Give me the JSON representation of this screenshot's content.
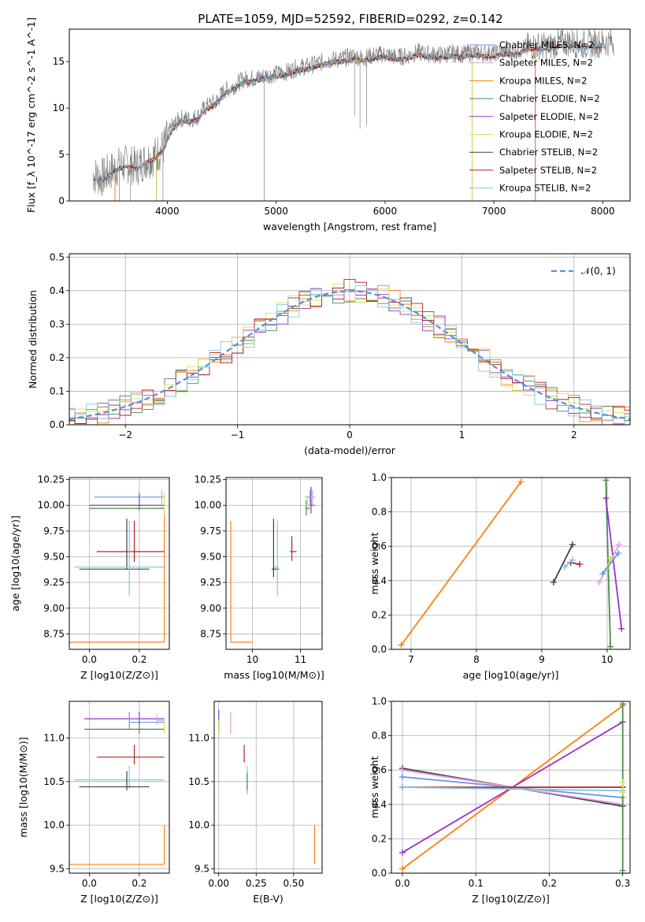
{
  "figure": {
    "title": "PLATE=1059, MJD=52592, FIBERID=0292, z=0.142"
  },
  "chart_data": [
    {
      "id": "spectrum",
      "type": "line",
      "title": "PLATE=1059, MJD=52592, FIBERID=0292, z=0.142",
      "xlabel": "wavelength [Angstrom, rest frame]",
      "ylabel": "Flux [f_λ 10^-17 erg cm^-2 s^-1 A^-1]",
      "xlim": [
        3100,
        8250
      ],
      "ylim": [
        0,
        18.5
      ],
      "xticks": [
        "4000",
        "5000",
        "6000",
        "7000",
        "8000"
      ],
      "yticks": [
        "0",
        "5",
        "10",
        "15"
      ],
      "grid": false,
      "legend_position": "top-right",
      "observed": {
        "color": "#808080",
        "x": [
          3320,
          3400,
          3480,
          3560,
          3640,
          3720,
          3800,
          3880,
          3960,
          4040,
          4120,
          4200,
          4280,
          4360,
          4440,
          4520,
          4600,
          4700,
          4800,
          4900,
          5000,
          5100,
          5200,
          5300,
          5400,
          5500,
          5600,
          5700,
          5800,
          5900,
          6000,
          6100,
          6200,
          6300,
          6400,
          6500,
          6600,
          6700,
          6800,
          6900,
          7000,
          7100,
          7200,
          7300,
          7400,
          7500,
          7600,
          7700,
          7800,
          7900,
          8000,
          8100
        ],
        "y": [
          2.8,
          2.5,
          3.2,
          3.8,
          4.0,
          3.7,
          4.4,
          4.8,
          5.7,
          7.9,
          8.9,
          8.8,
          9.1,
          10.2,
          10.6,
          11.8,
          12.3,
          13.1,
          13.2,
          13.5,
          13.7,
          13.9,
          14.4,
          14.5,
          14.9,
          15.2,
          15.3,
          15.6,
          15.4,
          15.7,
          15.8,
          15.5,
          15.6,
          16.0,
          15.8,
          15.7,
          15.9,
          15.8,
          16.0,
          15.9,
          15.9,
          16.1,
          16.1,
          16.6,
          16.7,
          16.6,
          17.0,
          17.1,
          16.8,
          16.9,
          17.0,
          17.2
        ]
      },
      "models": [
        {
          "name": "Chabrier MILES, N_SSP=2",
          "color": "#6495ed",
          "start": 3520,
          "end": 7380
        },
        {
          "name": "Salpeter MILES, N_SSP=2",
          "color": "#dda0dd",
          "start": 3520,
          "end": 7380
        },
        {
          "name": "Kroupa MILES, N_SSP=2",
          "color": "#ff7f0e",
          "start": 3520,
          "end": 7380
        },
        {
          "name": "Chabrier ELODIE, N_SSP=2",
          "color": "#4c8a4c",
          "start": 3900,
          "end": 6800
        },
        {
          "name": "Salpeter ELODIE, N_SSP=2",
          "color": "#9932cc",
          "start": 3900,
          "end": 6800
        },
        {
          "name": "Kroupa ELODIE, N_SSP=2",
          "color": "#d4e157",
          "start": 3900,
          "end": 6800
        },
        {
          "name": "Chabrier STELIB, N_SSP=2",
          "color": "#404040",
          "start": 3320,
          "end": 8000
        },
        {
          "name": "Salpeter STELIB, N_SSP=2",
          "color": "#b22222",
          "start": 3320,
          "end": 8000
        },
        {
          "name": "Kroupa STELIB, N_SSP=2",
          "color": "#7ec8e3",
          "start": 3320,
          "end": 8000
        }
      ]
    },
    {
      "id": "residuals",
      "type": "line",
      "xlabel": "(data-model)/error",
      "ylabel": "Normed distribution",
      "xlim": [
        -2.5,
        2.5
      ],
      "ylim": [
        0,
        0.51
      ],
      "xticks": [
        "−2",
        "−1",
        "0",
        "1",
        "2"
      ],
      "yticks": [
        "0.0",
        "0.1",
        "0.2",
        "0.3",
        "0.4",
        "0.5"
      ],
      "grid": true,
      "legend_position": "top-right",
      "reference": {
        "name": "𝒩(0, 1)",
        "color": "#5b8fd6",
        "mu": 0,
        "sigma": 1
      },
      "histogram_bin_width": 0.1,
      "histograms": [
        {
          "color": "#ff7f0e",
          "seed": 1
        },
        {
          "color": "#9932cc",
          "seed": 2
        },
        {
          "color": "#4c8a4c",
          "seed": 3
        },
        {
          "color": "#d4e157",
          "seed": 4
        },
        {
          "color": "#b22222",
          "seed": 5
        },
        {
          "color": "#7ec8e3",
          "seed": 6
        }
      ]
    },
    {
      "id": "age_vs_Z",
      "type": "scatter",
      "xlabel": "Z [log10(Z/Z⊙)]",
      "ylabel": "age  [log10(age/yr)]",
      "xlim": [
        -0.08,
        0.32
      ],
      "ylim": [
        8.6,
        10.27
      ],
      "xticks": [
        "0.0",
        "0.2"
      ],
      "yticks": [
        "8.75",
        "9.00",
        "9.25",
        "9.50",
        "9.75",
        "10.00",
        "10.25"
      ],
      "grid": true,
      "points": [
        {
          "color": "#ff7f0e",
          "x": 0.3,
          "y": 8.67,
          "xlo": -0.08,
          "xhi": 0.3,
          "ylo": 8.67,
          "yhi": 9.95
        },
        {
          "color": "#6495ed",
          "x": 0.2,
          "y": 10.08,
          "xlo": 0.02,
          "xhi": 0.3,
          "ylo": 10.08,
          "yhi": 10.08
        },
        {
          "color": "#9932cc",
          "x": 0.2,
          "y": 10.0,
          "xlo": 0.0,
          "xhi": 0.3,
          "ylo": 9.97,
          "yhi": 10.12
        },
        {
          "color": "#4c8a4c",
          "x": 0.2,
          "y": 9.97,
          "xlo": 0.0,
          "xhi": 0.3,
          "ylo": 9.95,
          "yhi": 10.0
        },
        {
          "color": "#dda0dd",
          "x": 0.29,
          "y": 10.08,
          "xlo": 0.29,
          "xhi": 0.29,
          "ylo": 9.98,
          "yhi": 10.15
        },
        {
          "color": "#d4e157",
          "x": 0.3,
          "y": 10.0,
          "xlo": 0.3,
          "xhi": 0.3,
          "ylo": 9.9,
          "yhi": 10.12
        },
        {
          "color": "#b22222",
          "x": 0.18,
          "y": 9.55,
          "xlo": 0.03,
          "xhi": 0.3,
          "ylo": 9.45,
          "yhi": 9.85
        },
        {
          "color": "#404040",
          "x": 0.15,
          "y": 9.38,
          "xlo": -0.04,
          "xhi": 0.24,
          "ylo": 9.38,
          "yhi": 9.87
        },
        {
          "color": "#7ec8e3",
          "x": 0.16,
          "y": 9.4,
          "xlo": -0.06,
          "xhi": 0.3,
          "ylo": 9.12,
          "yhi": 9.85
        }
      ]
    },
    {
      "id": "age_vs_mass",
      "type": "scatter",
      "xlabel": "mass [log10(M/M⊙)]",
      "ylabel": "",
      "xlim": [
        9.45,
        11.45
      ],
      "ylim": [
        8.6,
        10.27
      ],
      "xticks": [
        "10",
        "11"
      ],
      "yticks": [
        "8.75",
        "9.00",
        "9.25",
        "9.50",
        "9.75",
        "10.00",
        "10.25"
      ],
      "grid": true,
      "points": [
        {
          "color": "#ff7f0e",
          "x": 9.55,
          "y": 8.67,
          "xlo": 9.55,
          "xhi": 10.0,
          "ylo": 8.67,
          "yhi": 9.85
        },
        {
          "color": "#6495ed",
          "x": 11.2,
          "y": 10.08,
          "xlo": 11.1,
          "xhi": 11.3,
          "ylo": 10.0,
          "yhi": 10.15
        },
        {
          "color": "#9932cc",
          "x": 11.22,
          "y": 10.0,
          "xlo": 11.15,
          "xhi": 11.3,
          "ylo": 9.92,
          "yhi": 10.18
        },
        {
          "color": "#4c8a4c",
          "x": 11.12,
          "y": 9.97,
          "xlo": 11.1,
          "xhi": 11.2,
          "ylo": 9.9,
          "yhi": 10.05
        },
        {
          "color": "#dda0dd",
          "x": 11.25,
          "y": 10.08,
          "xlo": 11.2,
          "xhi": 11.3,
          "ylo": 10.0,
          "yhi": 10.15
        },
        {
          "color": "#d4e157",
          "x": 11.15,
          "y": 10.0,
          "xlo": 11.1,
          "xhi": 11.2,
          "ylo": 9.95,
          "yhi": 10.1
        },
        {
          "color": "#b22222",
          "x": 10.82,
          "y": 9.55,
          "xlo": 10.78,
          "xhi": 10.92,
          "ylo": 9.46,
          "yhi": 9.7
        },
        {
          "color": "#404040",
          "x": 10.44,
          "y": 9.38,
          "xlo": 10.4,
          "xhi": 10.55,
          "ylo": 9.3,
          "yhi": 9.87
        },
        {
          "color": "#7ec8e3",
          "x": 10.52,
          "y": 9.4,
          "xlo": 10.45,
          "xhi": 10.55,
          "ylo": 9.12,
          "yhi": 9.85
        }
      ]
    },
    {
      "id": "mass_weight_vs_age",
      "type": "line",
      "xlabel": "age  [log10(age/yr)]",
      "ylabel": "mass weight",
      "xlim": [
        6.7,
        10.35
      ],
      "ylim": [
        0,
        1
      ],
      "xticks": [
        "7",
        "8",
        "9",
        "10"
      ],
      "yticks": [
        "0.0",
        "0.2",
        "0.4",
        "0.6",
        "0.8",
        "1.0"
      ],
      "grid": true,
      "series": [
        {
          "color": "#ff7f0e",
          "x": [
            6.85,
            8.68
          ],
          "y": [
            0.025,
            0.975
          ]
        },
        {
          "color": "#404040",
          "x": [
            9.18,
            9.47
          ],
          "y": [
            0.39,
            0.61
          ]
        },
        {
          "color": "#b22222",
          "x": [
            9.44,
            9.58
          ],
          "y": [
            0.505,
            0.495
          ]
        },
        {
          "color": "#7ec8e3",
          "x": [
            9.35,
            9.47
          ],
          "y": [
            0.48,
            0.52
          ]
        },
        {
          "color": "#4c8a4c",
          "x": [
            9.98,
            10.05
          ],
          "y": [
            0.985,
            0.015
          ]
        },
        {
          "color": "#9932cc",
          "x": [
            9.98,
            10.22
          ],
          "y": [
            0.88,
            0.12
          ]
        },
        {
          "color": "#dda0dd",
          "x": [
            9.88,
            10.18
          ],
          "y": [
            0.39,
            0.61
          ]
        },
        {
          "color": "#d4e157",
          "x": [
            10.0,
            10.05
          ],
          "y": [
            0.47,
            0.53
          ]
        },
        {
          "color": "#6495ed",
          "x": [
            9.93,
            10.17
          ],
          "y": [
            0.44,
            0.56
          ]
        }
      ]
    },
    {
      "id": "mass_vs_Z",
      "type": "scatter",
      "xlabel": "Z [log10(Z/Z⊙)]",
      "ylabel": "mass [log10(M/M⊙)]",
      "xlim": [
        -0.08,
        0.32
      ],
      "ylim": [
        9.45,
        11.42
      ],
      "xticks": [
        "0.0",
        "0.2"
      ],
      "yticks": [
        "9.5",
        "10.0",
        "10.5",
        "11.0"
      ],
      "grid": true,
      "points": [
        {
          "color": "#ff7f0e",
          "x": 0.3,
          "y": 9.55,
          "xlo": -0.08,
          "xhi": 0.3,
          "ylo": 9.55,
          "yhi": 10.0
        },
        {
          "color": "#9932cc",
          "x": 0.2,
          "y": 11.22,
          "xlo": -0.02,
          "xhi": 0.3,
          "ylo": 11.15,
          "yhi": 11.3
        },
        {
          "color": "#6495ed",
          "x": 0.16,
          "y": 11.18,
          "xlo": 0.16,
          "xhi": 0.3,
          "ylo": 11.1,
          "yhi": 11.3
        },
        {
          "color": "#dda0dd",
          "x": 0.27,
          "y": 11.2,
          "xlo": 0.27,
          "xhi": 0.3,
          "ylo": 11.15,
          "yhi": 11.28
        },
        {
          "color": "#4c8a4c",
          "x": 0.2,
          "y": 11.1,
          "xlo": -0.02,
          "xhi": 0.3,
          "ylo": 11.05,
          "yhi": 11.2
        },
        {
          "color": "#d4e157",
          "x": 0.3,
          "y": 11.12,
          "xlo": 0.3,
          "xhi": 0.3,
          "ylo": 11.05,
          "yhi": 11.2
        },
        {
          "color": "#b22222",
          "x": 0.18,
          "y": 10.78,
          "xlo": 0.03,
          "xhi": 0.3,
          "ylo": 10.7,
          "yhi": 10.92
        },
        {
          "color": "#7ec8e3",
          "x": 0.16,
          "y": 10.52,
          "xlo": -0.06,
          "xhi": 0.3,
          "ylo": 10.42,
          "yhi": 10.68
        },
        {
          "color": "#404040",
          "x": 0.15,
          "y": 10.44,
          "xlo": -0.04,
          "xhi": 0.24,
          "ylo": 10.4,
          "yhi": 10.62
        }
      ]
    },
    {
      "id": "mass_vs_EBV",
      "type": "scatter",
      "xlabel": "E(B-V)",
      "ylabel": "",
      "xlim": [
        -0.03,
        0.69
      ],
      "ylim": [
        9.45,
        11.42
      ],
      "xticks": [
        "0.00",
        "0.25",
        "0.50"
      ],
      "yticks": [
        "9.5",
        "10.0",
        "10.5",
        "11.0"
      ],
      "grid": true,
      "points": [
        {
          "color": "#ff7f0e",
          "x": 0.64,
          "y": 9.55,
          "xlo": 0.64,
          "xhi": 0.64,
          "ylo": 9.55,
          "yhi": 10.0
        },
        {
          "color": "#9932cc",
          "x": 0.0,
          "y": 11.25,
          "xlo": 0.0,
          "xhi": 0.0,
          "ylo": 11.2,
          "yhi": 11.32
        },
        {
          "color": "#6495ed",
          "x": 0.0,
          "y": 11.18,
          "xlo": 0.0,
          "xhi": 0.0,
          "ylo": 11.1,
          "yhi": 11.25
        },
        {
          "color": "#dda0dd",
          "x": 0.08,
          "y": 11.2,
          "xlo": 0.08,
          "xhi": 0.08,
          "ylo": 11.05,
          "yhi": 11.3
        },
        {
          "color": "#4c8a4c",
          "x": 0.0,
          "y": 11.1,
          "xlo": 0.0,
          "xhi": 0.0,
          "ylo": 11.05,
          "yhi": 11.2
        },
        {
          "color": "#d4e157",
          "x": 0.0,
          "y": 11.12,
          "xlo": 0.0,
          "xhi": 0.0,
          "ylo": 11.05,
          "yhi": 11.2
        },
        {
          "color": "#b22222",
          "x": 0.17,
          "y": 10.8,
          "xlo": 0.17,
          "xhi": 0.17,
          "ylo": 10.72,
          "yhi": 10.92
        },
        {
          "color": "#7ec8e3",
          "x": 0.19,
          "y": 10.5,
          "xlo": 0.19,
          "xhi": 0.19,
          "ylo": 10.35,
          "yhi": 10.68
        },
        {
          "color": "#4c8a4c",
          "x": 0.19,
          "y": 10.48,
          "xlo": 0.19,
          "xhi": 0.19,
          "ylo": 10.4,
          "yhi": 10.6
        }
      ]
    },
    {
      "id": "mass_weight_vs_Z",
      "type": "line",
      "xlabel": "Z [log10(Z/Z⊙)]",
      "ylabel": "mass weight",
      "xlim": [
        -0.015,
        0.31
      ],
      "ylim": [
        0,
        1
      ],
      "xticks": [
        "0.0",
        "0.1",
        "0.2",
        "0.3"
      ],
      "yticks": [
        "0.0",
        "0.2",
        "0.4",
        "0.6",
        "0.8",
        "1.0"
      ],
      "grid": true,
      "series": [
        {
          "color": "#ff7f0e",
          "x": [
            0.0,
            0.3
          ],
          "y": [
            0.025,
            0.975
          ]
        },
        {
          "color": "#9932cc",
          "x": [
            0.0,
            0.3
          ],
          "y": [
            0.12,
            0.88
          ]
        },
        {
          "color": "#6495ed",
          "x": [
            0.0,
            0.3
          ],
          "y": [
            0.56,
            0.44
          ]
        },
        {
          "color": "#404040",
          "x": [
            0.0,
            0.3
          ],
          "y": [
            0.61,
            0.39
          ]
        },
        {
          "color": "#dda0dd",
          "x": [
            0.0,
            0.3
          ],
          "y": [
            0.6,
            0.4
          ]
        },
        {
          "color": "#b22222",
          "x": [
            0.0,
            0.3
          ],
          "y": [
            0.5,
            0.5
          ]
        },
        {
          "color": "#7ec8e3",
          "x": [
            0.0,
            0.3
          ],
          "y": [
            0.5,
            0.48
          ]
        },
        {
          "color": "#4c8a4c",
          "x": [
            0.3,
            0.3
          ],
          "y": [
            0.015,
            0.985
          ]
        },
        {
          "color": "#d4e157",
          "x": [
            0.3,
            0.3
          ],
          "y": [
            0.47,
            0.53
          ]
        }
      ]
    }
  ]
}
